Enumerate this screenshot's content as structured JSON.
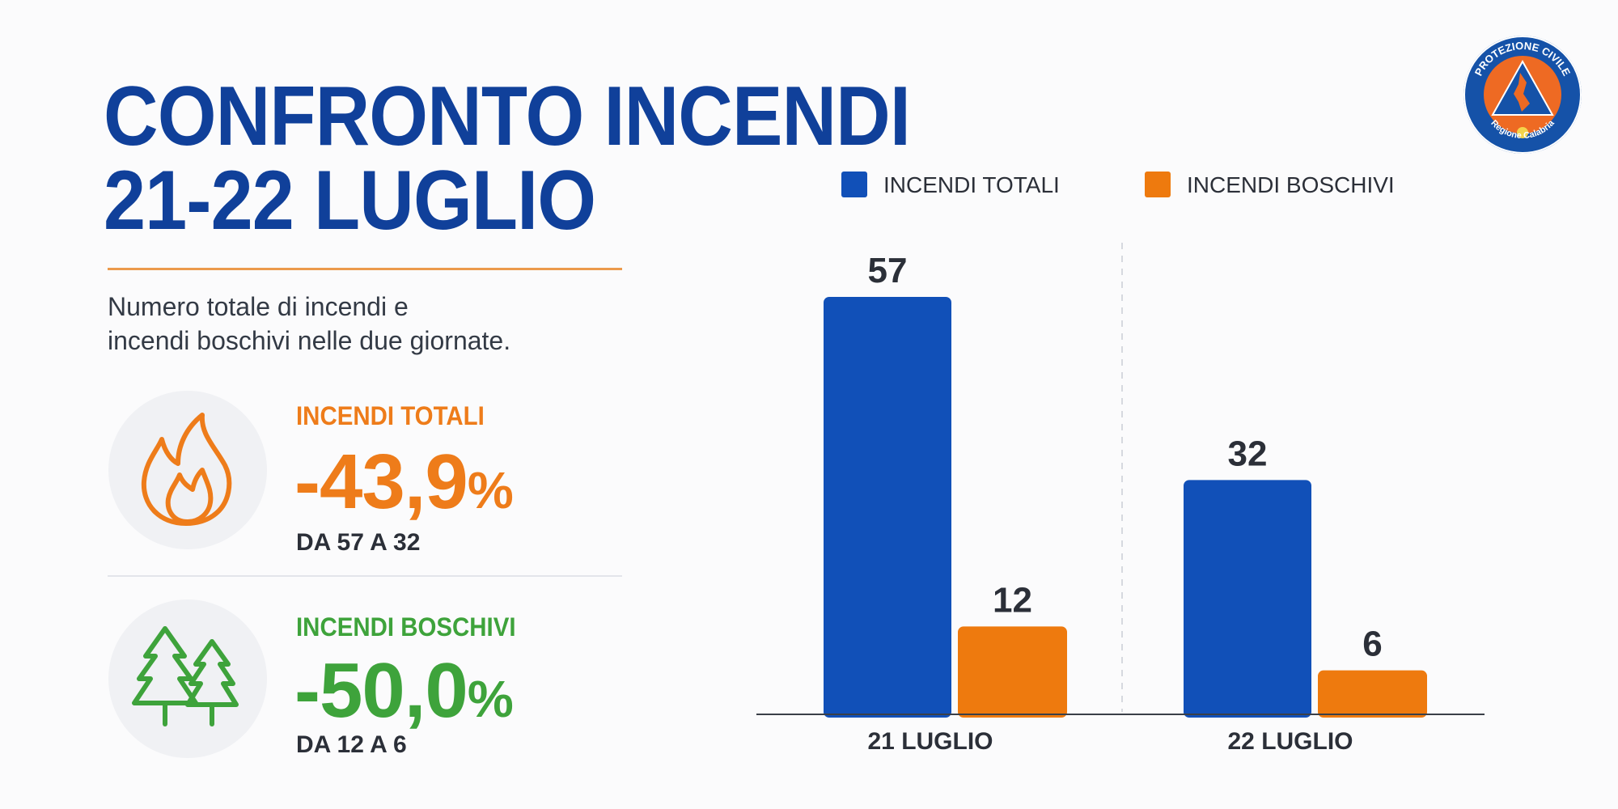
{
  "header": {
    "title_line1": "CONFRONTO INCENDI",
    "title_line2": "21-22 LUGLIO",
    "subtitle_line1": "Numero totale di incendi e",
    "subtitle_line2": "incendi boschivi nelle due giornate."
  },
  "stats": [
    {
      "label": "INCENDI TOTALI",
      "value": "-43,9",
      "unit": "%",
      "detail": "DA 57 A 32",
      "icon": "flame-icon",
      "color": "#ee7c1a"
    },
    {
      "label": "INCENDI BOSCHIVI",
      "value": "-50,0",
      "unit": "%",
      "detail": "DA 12 A 6",
      "icon": "pine-trees-icon",
      "color": "#3ea33b"
    }
  ],
  "logo": {
    "top_text": "PROTEZIONE CIVILE",
    "bottom_text": "Regione Calabria",
    "colors": {
      "ring": "#1552a8",
      "fill": "#ee6a23"
    }
  },
  "chart_data": {
    "type": "bar",
    "categories": [
      "21 LUGLIO",
      "22 LUGLIO"
    ],
    "series": [
      {
        "name": "INCENDI TOTALI",
        "values": [
          57,
          32
        ],
        "color": "#1150b8"
      },
      {
        "name": "INCENDI BOSCHIVI",
        "values": [
          12,
          6
        ],
        "color": "#ee7a0e"
      }
    ],
    "ylim": [
      0,
      57
    ],
    "legend": "top",
    "grid": false,
    "data_labels": true
  }
}
